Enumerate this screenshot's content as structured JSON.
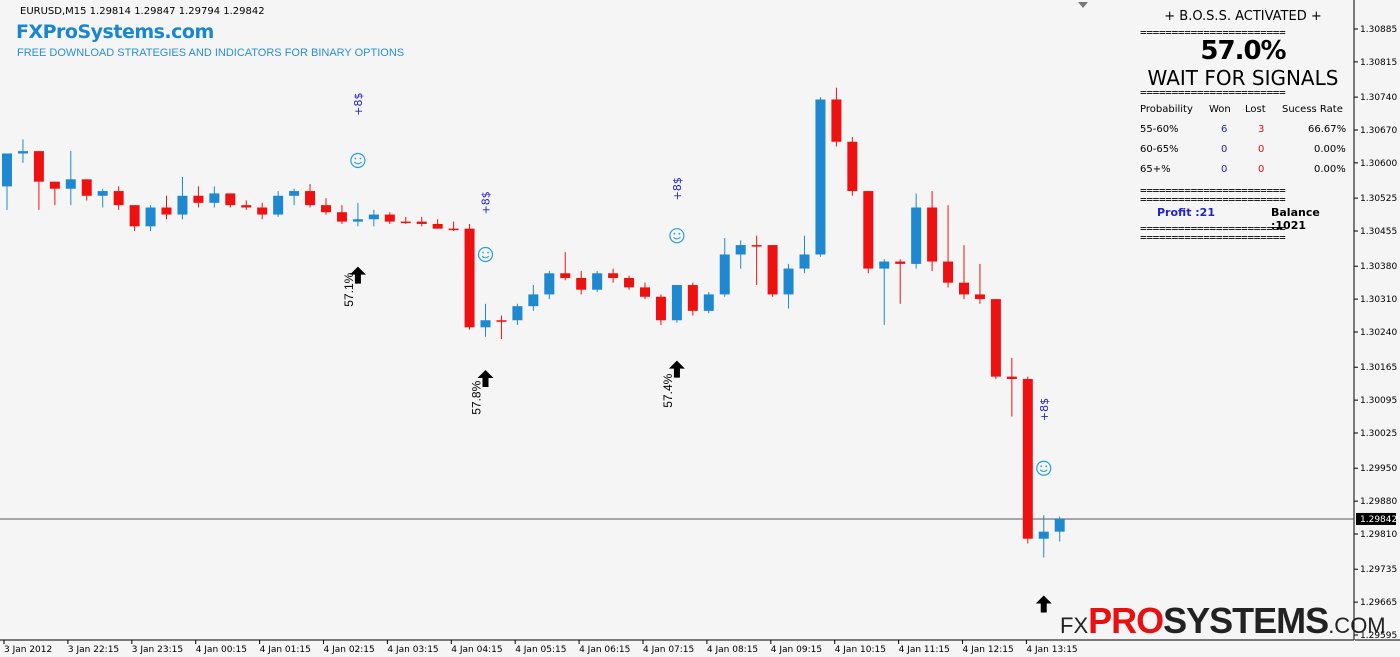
{
  "header": {
    "symbol_line": "EURUSD,M15  1.29814 1.29847 1.29794 1.29842",
    "brand": "FXProSystems.com",
    "tagline": "FREE DOWNLOAD STRATEGIES AND INDICATORS FOR BINARY OPTIONS"
  },
  "panel": {
    "title": "+ B.O.S.S. ACTIVATED +",
    "separator": "=======================",
    "probability": "57.0%",
    "status": "WAIT FOR SIGNALS",
    "headers": [
      "Probability",
      "Won",
      "Lost",
      "Sucess Rate"
    ],
    "rows": [
      {
        "range": "55-60%",
        "won": "6",
        "lost": "3",
        "rate": "66.67%"
      },
      {
        "range": "60-65%",
        "won": "0",
        "lost": "0",
        "rate": "0.00%"
      },
      {
        "range": "65+%",
        "won": "0",
        "lost": "0",
        "rate": "0.00%"
      }
    ],
    "profit": "Profit :21",
    "balance": "Balance :1021",
    "colors": {
      "won": "#2222cc",
      "lost": "#e01010"
    }
  },
  "logo": {
    "fx": "FX",
    "pro": "PRO",
    "systems": "SYSTEMS",
    "com": ".COM"
  },
  "chart_data": {
    "type": "candlestick",
    "symbol": "EURUSD",
    "timeframe": "M15",
    "ylim": [
      1.2956,
      1.3093
    ],
    "y_ticks": [
      "1.30885",
      "1.30815",
      "1.30740",
      "1.30670",
      "1.30600",
      "1.30525",
      "1.30455",
      "1.30380",
      "1.30310",
      "1.30240",
      "1.30165",
      "1.30095",
      "1.30025",
      "1.29950",
      "1.29880",
      "1.29810",
      "1.29735",
      "1.29665",
      "1.29595"
    ],
    "x_ticks": [
      "3 Jan 2012",
      "3 Jan 22:15",
      "3 Jan 23:15",
      "4 Jan 00:15",
      "4 Jan 01:15",
      "4 Jan 02:15",
      "4 Jan 03:15",
      "4 Jan 04:15",
      "4 Jan 05:15",
      "4 Jan 06:15",
      "4 Jan 07:15",
      "4 Jan 08:15",
      "4 Jan 09:15",
      "4 Jan 10:15",
      "4 Jan 11:15",
      "4 Jan 12:15",
      "4 Jan 13:15"
    ],
    "current_price": "1.29842",
    "colors": {
      "bull": "#1e88d0",
      "bear": "#ee1111",
      "doji": "#000000"
    },
    "candles": [
      {
        "o": 1.3055,
        "h": 1.3062,
        "l": 1.305,
        "c": 1.3062
      },
      {
        "o": 1.3062,
        "h": 1.3065,
        "l": 1.306,
        "c": 1.30625
      },
      {
        "o": 1.30625,
        "h": 1.30625,
        "l": 1.305,
        "c": 1.3056
      },
      {
        "o": 1.3056,
        "h": 1.3056,
        "l": 1.3051,
        "c": 1.30545
      },
      {
        "o": 1.30545,
        "h": 1.30625,
        "l": 1.3051,
        "c": 1.30565
      },
      {
        "o": 1.30565,
        "h": 1.30565,
        "l": 1.3052,
        "c": 1.3053
      },
      {
        "o": 1.3053,
        "h": 1.30545,
        "l": 1.30505,
        "c": 1.3054
      },
      {
        "o": 1.3054,
        "h": 1.3055,
        "l": 1.305,
        "c": 1.3051
      },
      {
        "o": 1.3051,
        "h": 1.3051,
        "l": 1.30455,
        "c": 1.30465
      },
      {
        "o": 1.30465,
        "h": 1.3051,
        "l": 1.30455,
        "c": 1.30505
      },
      {
        "o": 1.30505,
        "h": 1.3053,
        "l": 1.3048,
        "c": 1.3049
      },
      {
        "o": 1.3049,
        "h": 1.3057,
        "l": 1.3048,
        "c": 1.3053
      },
      {
        "o": 1.3053,
        "h": 1.3055,
        "l": 1.30505,
        "c": 1.30515
      },
      {
        "o": 1.30515,
        "h": 1.3055,
        "l": 1.30505,
        "c": 1.30535
      },
      {
        "o": 1.30535,
        "h": 1.30535,
        "l": 1.30505,
        "c": 1.3051
      },
      {
        "o": 1.3051,
        "h": 1.3052,
        "l": 1.305,
        "c": 1.30505
      },
      {
        "o": 1.30505,
        "h": 1.30515,
        "l": 1.3048,
        "c": 1.3049
      },
      {
        "o": 1.3049,
        "h": 1.3054,
        "l": 1.30485,
        "c": 1.3053
      },
      {
        "o": 1.3053,
        "h": 1.30545,
        "l": 1.3051,
        "c": 1.3054
      },
      {
        "o": 1.3054,
        "h": 1.30555,
        "l": 1.30505,
        "c": 1.3051
      },
      {
        "o": 1.3051,
        "h": 1.30525,
        "l": 1.3049,
        "c": 1.30495
      },
      {
        "o": 1.30495,
        "h": 1.3051,
        "l": 1.3047,
        "c": 1.30475
      },
      {
        "o": 1.30475,
        "h": 1.30515,
        "l": 1.30465,
        "c": 1.3048
      },
      {
        "o": 1.3048,
        "h": 1.305,
        "l": 1.30465,
        "c": 1.3049
      },
      {
        "o": 1.3049,
        "h": 1.30495,
        "l": 1.3047,
        "c": 1.30475
      },
      {
        "o": 1.30475,
        "h": 1.30485,
        "l": 1.3047,
        "c": 1.30475
      },
      {
        "o": 1.30475,
        "h": 1.30485,
        "l": 1.30465,
        "c": 1.3047
      },
      {
        "o": 1.3047,
        "h": 1.3048,
        "l": 1.3046,
        "c": 1.3046
      },
      {
        "o": 1.3046,
        "h": 1.30475,
        "l": 1.30455,
        "c": 1.3046
      },
      {
        "o": 1.3046,
        "h": 1.3047,
        "l": 1.30245,
        "c": 1.3025
      },
      {
        "o": 1.3025,
        "h": 1.303,
        "l": 1.3023,
        "c": 1.30265
      },
      {
        "o": 1.30265,
        "h": 1.30275,
        "l": 1.30225,
        "c": 1.30265
      },
      {
        "o": 1.30265,
        "h": 1.303,
        "l": 1.30255,
        "c": 1.30295
      },
      {
        "o": 1.30295,
        "h": 1.3034,
        "l": 1.30285,
        "c": 1.3032
      },
      {
        "o": 1.3032,
        "h": 1.3037,
        "l": 1.3031,
        "c": 1.30365
      },
      {
        "o": 1.30365,
        "h": 1.3041,
        "l": 1.3035,
        "c": 1.30355
      },
      {
        "o": 1.30355,
        "h": 1.3037,
        "l": 1.3032,
        "c": 1.3033
      },
      {
        "o": 1.3033,
        "h": 1.3037,
        "l": 1.30325,
        "c": 1.30365
      },
      {
        "o": 1.30365,
        "h": 1.30375,
        "l": 1.30345,
        "c": 1.30355
      },
      {
        "o": 1.30355,
        "h": 1.3036,
        "l": 1.3033,
        "c": 1.30335
      },
      {
        "o": 1.30335,
        "h": 1.30345,
        "l": 1.3031,
        "c": 1.30315
      },
      {
        "o": 1.30315,
        "h": 1.3032,
        "l": 1.30255,
        "c": 1.30265
      },
      {
        "o": 1.30265,
        "h": 1.3034,
        "l": 1.3026,
        "c": 1.3034
      },
      {
        "o": 1.3034,
        "h": 1.30345,
        "l": 1.30275,
        "c": 1.30285
      },
      {
        "o": 1.30285,
        "h": 1.30325,
        "l": 1.3028,
        "c": 1.3032
      },
      {
        "o": 1.3032,
        "h": 1.3044,
        "l": 1.30315,
        "c": 1.30405
      },
      {
        "o": 1.30405,
        "h": 1.30435,
        "l": 1.30375,
        "c": 1.30425
      },
      {
        "o": 1.30425,
        "h": 1.30445,
        "l": 1.3034,
        "c": 1.30425
      },
      {
        "o": 1.30425,
        "h": 1.30425,
        "l": 1.30315,
        "c": 1.3032
      },
      {
        "o": 1.3032,
        "h": 1.30385,
        "l": 1.3029,
        "c": 1.30375
      },
      {
        "o": 1.30375,
        "h": 1.30445,
        "l": 1.30365,
        "c": 1.30405
      },
      {
        "o": 1.30405,
        "h": 1.3074,
        "l": 1.304,
        "c": 1.30735
      },
      {
        "o": 1.30735,
        "h": 1.3076,
        "l": 1.30635,
        "c": 1.30645
      },
      {
        "o": 1.30645,
        "h": 1.30655,
        "l": 1.3053,
        "c": 1.3054
      },
      {
        "o": 1.3054,
        "h": 1.3054,
        "l": 1.30365,
        "c": 1.30375
      },
      {
        "o": 1.30375,
        "h": 1.30395,
        "l": 1.30255,
        "c": 1.3039
      },
      {
        "o": 1.3039,
        "h": 1.30395,
        "l": 1.303,
        "c": 1.30385
      },
      {
        "o": 1.30385,
        "h": 1.30535,
        "l": 1.30375,
        "c": 1.30505
      },
      {
        "o": 1.30505,
        "h": 1.3054,
        "l": 1.3037,
        "c": 1.3039
      },
      {
        "o": 1.3039,
        "h": 1.3051,
        "l": 1.30335,
        "c": 1.30345
      },
      {
        "o": 1.30345,
        "h": 1.30425,
        "l": 1.3031,
        "c": 1.3032
      },
      {
        "o": 1.3032,
        "h": 1.30385,
        "l": 1.303,
        "c": 1.3031
      },
      {
        "o": 1.3031,
        "h": 1.3031,
        "l": 1.3014,
        "c": 1.30145
      },
      {
        "o": 1.30145,
        "h": 1.30185,
        "l": 1.3006,
        "c": 1.3014
      },
      {
        "o": 1.3014,
        "h": 1.30145,
        "l": 1.2979,
        "c": 1.298
      },
      {
        "o": 1.298,
        "h": 1.2985,
        "l": 1.2976,
        "c": 1.29815
      },
      {
        "o": 1.29815,
        "h": 1.29847,
        "l": 1.29794,
        "c": 1.29842
      }
    ],
    "probability_labels": [
      {
        "text": "57.1%",
        "price": 1.3033,
        "index": 22
      },
      {
        "text": "57.8%",
        "price": 1.301,
        "index": 30
      },
      {
        "text": "57.4%",
        "price": 1.30115,
        "index": 42
      }
    ],
    "buy_arrows": [
      {
        "index": 22,
        "price": 1.3036
      },
      {
        "index": 30,
        "price": 1.3014
      },
      {
        "index": 42,
        "price": 1.3016
      },
      {
        "index": 65,
        "price": 1.2966
      }
    ],
    "win_markers": [
      {
        "text": "+8$",
        "index": 22,
        "price": 1.30725
      },
      {
        "text": "+8$",
        "index": 30,
        "price": 1.30515
      },
      {
        "text": "+8$",
        "index": 42,
        "price": 1.30545
      },
      {
        "text": "+8$",
        "index": 65,
        "price": 1.30075
      }
    ],
    "smileys": [
      {
        "index": 22,
        "price": 1.30605
      },
      {
        "index": 30,
        "price": 1.30405
      },
      {
        "index": 42,
        "price": 1.30445
      },
      {
        "index": 65,
        "price": 1.2995
      }
    ]
  }
}
